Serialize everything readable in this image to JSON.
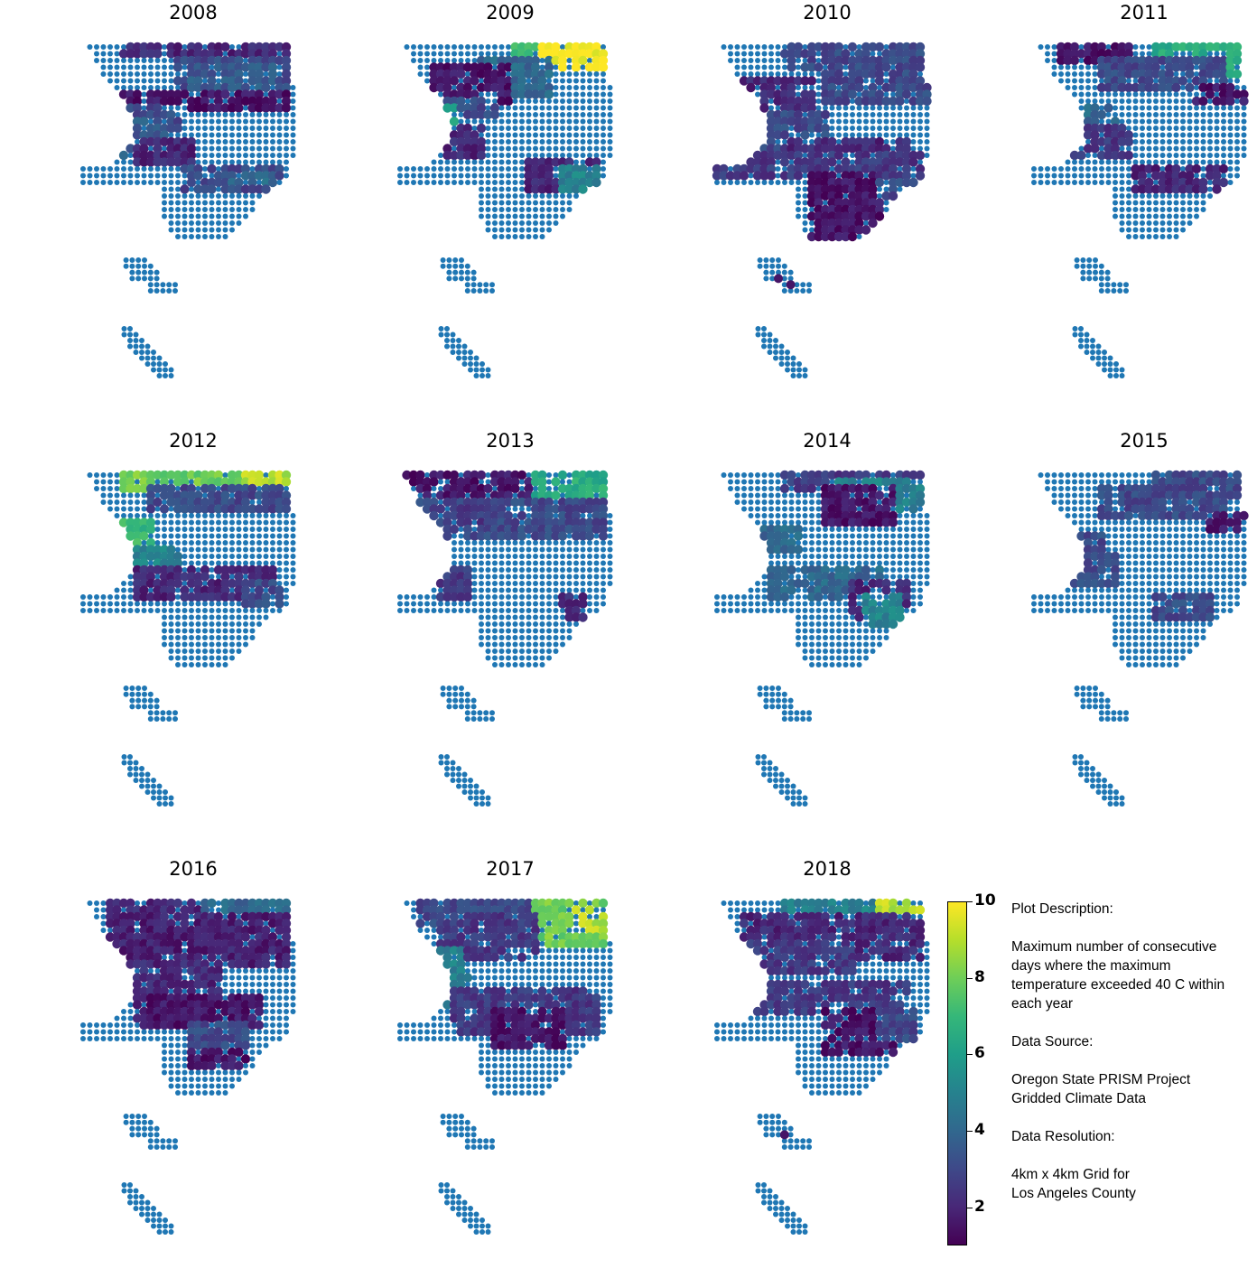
{
  "chart_data": {
    "type": "scatter",
    "description": "Small-multiple point maps over a 4km grid of Los Angeles County; each colored point is a grid cell's value, blue points are cells without a value",
    "panels": [
      {
        "title": "2008"
      },
      {
        "title": "2009"
      },
      {
        "title": "2010"
      },
      {
        "title": "2011"
      },
      {
        "title": "2012"
      },
      {
        "title": "2013"
      },
      {
        "title": "2014"
      },
      {
        "title": "2015"
      },
      {
        "title": "2016"
      },
      {
        "title": "2017"
      },
      {
        "title": "2018"
      }
    ],
    "colorbar": {
      "colormap": "viridis",
      "range": [
        1,
        10
      ],
      "ticks": [
        2,
        4,
        6,
        8,
        10
      ],
      "tick_labels": [
        "2",
        "4",
        "6",
        "8",
        "10"
      ]
    },
    "base_point_color": "#1f77b4",
    "axes": "off"
  },
  "description": {
    "heading": "Plot Description:",
    "body": "Maximum number of consecutive days where the maximum temperature exceeded 40 C within each year",
    "source_heading": "Data Source:",
    "source_line1": "Oregon State PRISM Project",
    "source_line2": "Gridded Climate Data",
    "resolution_heading": "Data Resolution:",
    "resolution_line1": "4km x 4km Grid for",
    "resolution_line2": "Los Angeles County"
  }
}
